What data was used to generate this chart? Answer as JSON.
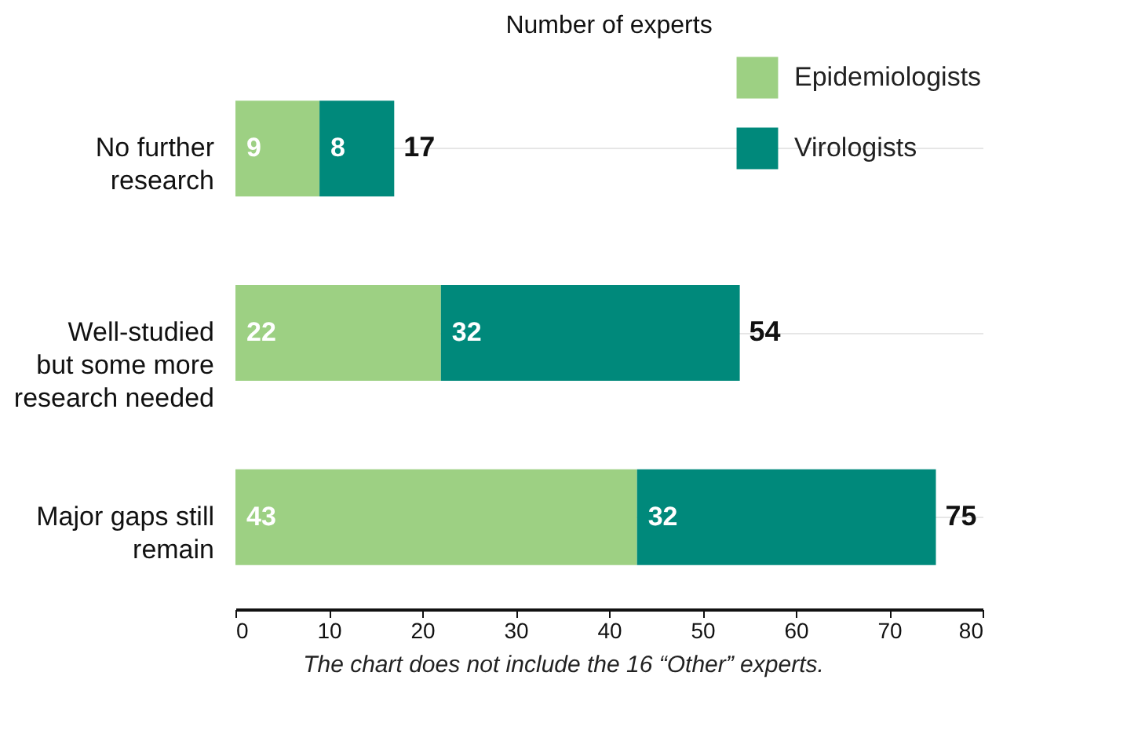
{
  "chart_data": {
    "type": "bar",
    "orientation": "horizontal",
    "stacked": true,
    "title": "Number of experts",
    "categories": [
      "No further\nresearch",
      "Well-studied\nbut some more\nresearch needed",
      "Major gaps still\nremain"
    ],
    "series": [
      {
        "name": "Epidemiologists",
        "color": "#9dd083",
        "values": [
          9,
          22,
          43
        ]
      },
      {
        "name": "Virologists",
        "color": "#00897b",
        "values": [
          8,
          32,
          32
        ]
      }
    ],
    "totals": [
      "17",
      "54",
      "75"
    ],
    "data_labels": true,
    "xlim": [
      0,
      80
    ],
    "xticks": [
      0,
      10,
      20,
      30,
      40,
      50,
      60,
      70,
      80
    ],
    "grid": "y",
    "legend": "top right",
    "annotations": [
      "The chart does not include the 16 “Other” experts."
    ]
  }
}
